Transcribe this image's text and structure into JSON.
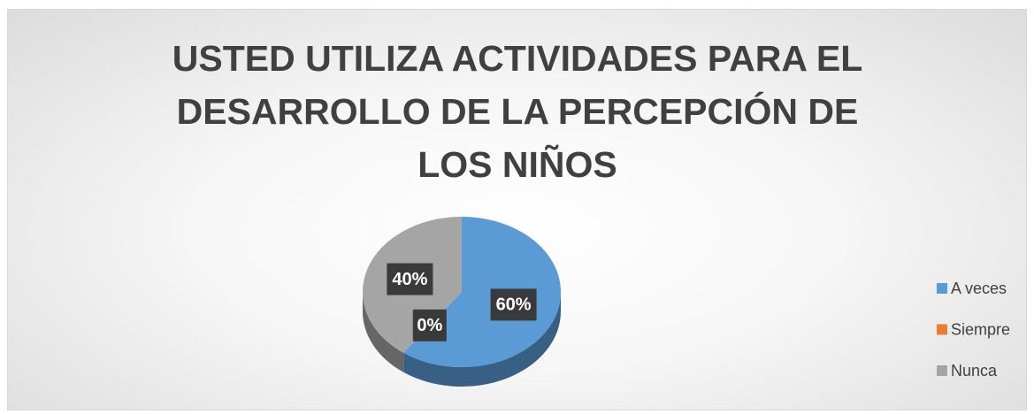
{
  "chart_data": {
    "type": "pie3d",
    "title": "USTED UTILIZA ACTIVIDADES PARA EL DESARROLLO DE LA PERCEPCIÓN DE LOS NIÑOS",
    "categories": [
      "A veces",
      "Siempre",
      "Nunca"
    ],
    "values": [
      60,
      0,
      40
    ],
    "value_labels": [
      "60%",
      "0%",
      "40%"
    ],
    "colors": [
      "#5b9bd5",
      "#ed7d31",
      "#a5a5a5"
    ],
    "legend": "right"
  }
}
